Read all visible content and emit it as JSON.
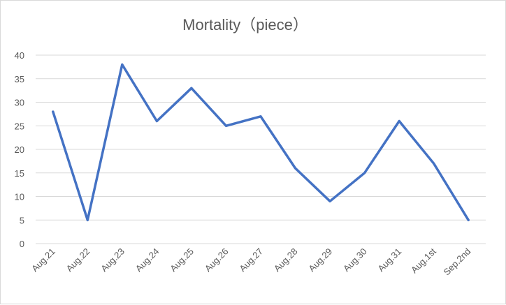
{
  "chart_data": {
    "type": "line",
    "title": "Mortality（piece）",
    "xlabel": "",
    "ylabel": "",
    "categories": [
      "Aug.21",
      "Aug.22",
      "Aug.23",
      "Aug.24",
      "Aug.25",
      "Aug.26",
      "Aug.27",
      "Aug.28",
      "Aug.29",
      "Aug.30",
      "Aug.31",
      "Aug.1st",
      "Sep.2nd"
    ],
    "series": [
      {
        "values": [
          28,
          5,
          38,
          26,
          33,
          25,
          27,
          16,
          9,
          15,
          26,
          17,
          5
        ]
      }
    ],
    "ylim": [
      0,
      40
    ],
    "yticks": [
      "0",
      "5",
      "10",
      "15",
      "20",
      "25",
      "30",
      "35",
      "40"
    ],
    "grid": true,
    "legend": "none",
    "line_color": "#4472c4"
  }
}
